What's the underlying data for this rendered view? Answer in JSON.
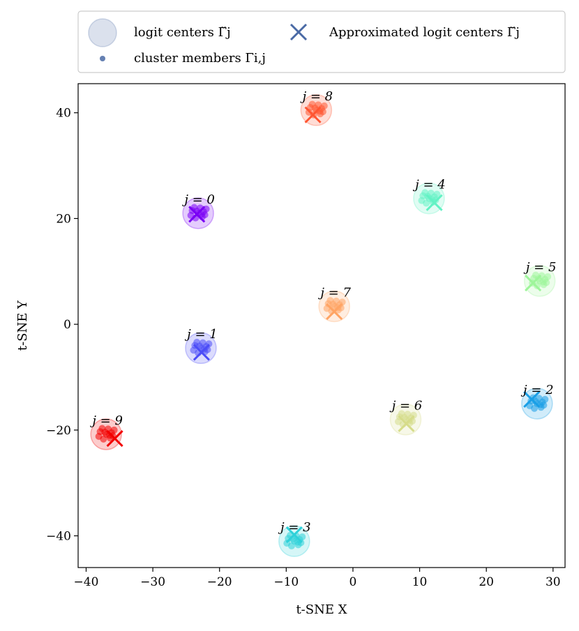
{
  "chart_data": {
    "type": "scatter",
    "xlabel": "t-SNE X",
    "ylabel": "t-SNE Y",
    "xlim": [
      -41.2,
      31.8
    ],
    "ylim": [
      -46,
      45.5
    ],
    "xticks": [
      -40,
      -30,
      -20,
      -10,
      0,
      10,
      20,
      30
    ],
    "yticks": [
      -40,
      -20,
      0,
      20,
      40
    ],
    "tick_labels_x": [
      "−40",
      "−30",
      "−20",
      "−10",
      "0",
      "10",
      "20",
      "30"
    ],
    "tick_labels_y": [
      "−40",
      "−20",
      "0",
      "20",
      "40"
    ],
    "grid": false,
    "legend": {
      "placement": "top (outside plot)",
      "entries": [
        {
          "marker": "circle",
          "label": "logit centers Γ̆j"
        },
        {
          "marker": "x",
          "label": "Approximated logit centers Γ̆j"
        },
        {
          "marker": "dot",
          "label": "cluster members Γi,j"
        }
      ]
    },
    "clusters": [
      {
        "label": "j = 0",
        "color": "#7a00f5",
        "center": [
          -23.2,
          21.0
        ],
        "approx": [
          -23.4,
          20.8
        ]
      },
      {
        "label": "j = 1",
        "color": "#4b4cf7",
        "center": [
          -22.8,
          -4.5
        ],
        "approx": [
          -22.7,
          -5.3
        ]
      },
      {
        "label": "j = 2",
        "color": "#199fe6",
        "center": [
          27.6,
          -15.0
        ],
        "approx": [
          26.8,
          -14.2
        ]
      },
      {
        "label": "j = 3",
        "color": "#2ed1d9",
        "center": [
          -8.8,
          -41.0
        ],
        "approx": [
          -8.8,
          -39.8
        ]
      },
      {
        "label": "j = 4",
        "color": "#62f2c4",
        "center": [
          11.4,
          23.8
        ],
        "approx": [
          12.2,
          23.0
        ]
      },
      {
        "label": "j = 5",
        "color": "#9ef59a",
        "center": [
          28.0,
          8.2
        ],
        "approx": [
          27.0,
          7.8
        ]
      },
      {
        "label": "j = 6",
        "color": "#d6dc8a",
        "center": [
          7.9,
          -18.0
        ],
        "approx": [
          8.0,
          -18.8
        ]
      },
      {
        "label": "j = 7",
        "color": "#ffa464",
        "center": [
          -2.8,
          3.4
        ],
        "approx": [
          -2.8,
          2.4
        ]
      },
      {
        "label": "j = 8",
        "color": "#ff5531",
        "center": [
          -5.5,
          40.5
        ],
        "approx": [
          -6.0,
          39.6
        ]
      },
      {
        "label": "j = 9",
        "color": "#f20000",
        "center": [
          -37.0,
          -20.8
        ],
        "approx": [
          -35.7,
          -21.6
        ]
      }
    ]
  }
}
